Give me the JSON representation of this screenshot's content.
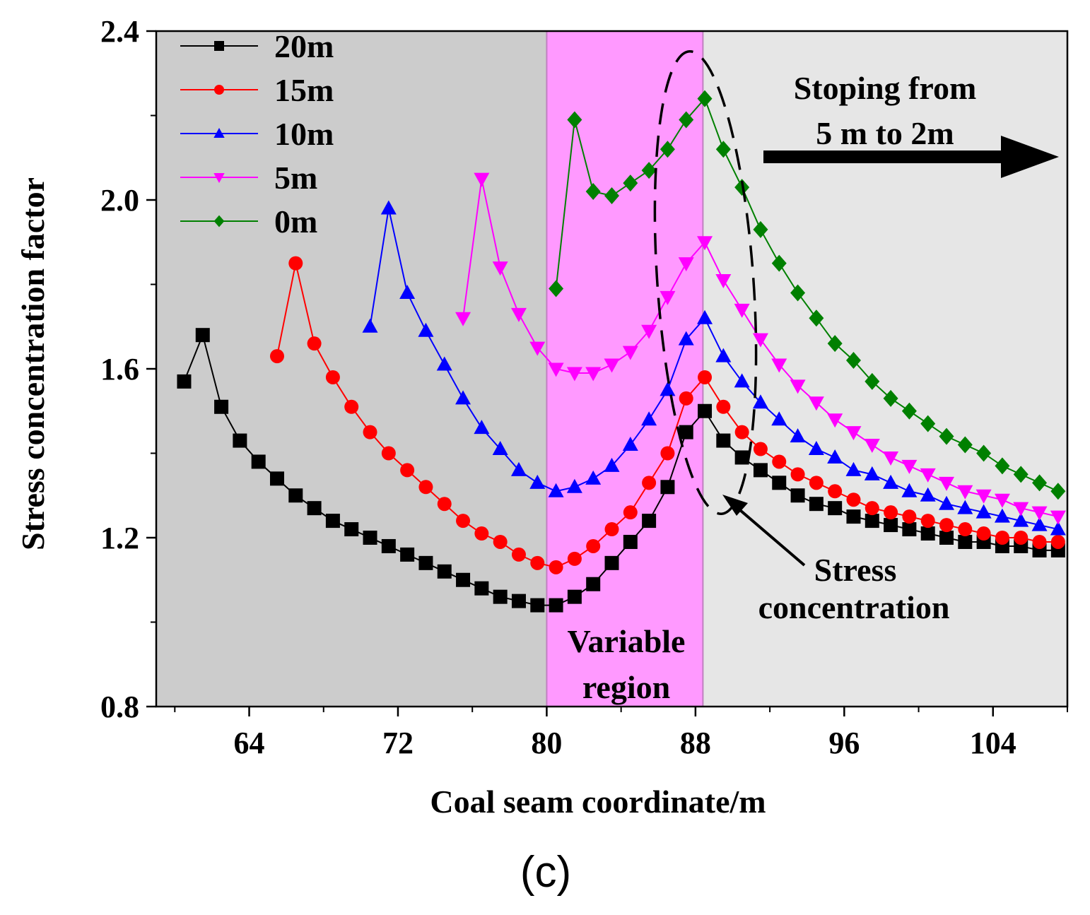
{
  "chart_data": {
    "type": "line",
    "title": "",
    "panel_label": "(c)",
    "xlabel": "Coal seam coordinate/m",
    "ylabel": "Stress concentration factor",
    "xlim": [
      59,
      108
    ],
    "ylim": [
      0.8,
      2.4
    ],
    "xticks": [
      64,
      72,
      80,
      88,
      96,
      104
    ],
    "xtick_labels": [
      "64",
      "72",
      "80",
      "88",
      "96",
      "104"
    ],
    "yticks": [
      0.8,
      1.2,
      1.6,
      2.0,
      2.4
    ],
    "ytick_labels": [
      "0.8",
      "1.2",
      "1.6",
      "2.0",
      "2.4"
    ],
    "legend_position": "top-left",
    "regions": [
      {
        "name": "left",
        "x": [
          59,
          80
        ],
        "color": "#cccccc"
      },
      {
        "name": "variable",
        "x": [
          80,
          88.4
        ],
        "color": "#ff99ff"
      },
      {
        "name": "right",
        "x": [
          88.4,
          108
        ],
        "color": "#e6e6e6"
      }
    ],
    "annotations": {
      "variable_region": [
        "Variable",
        "region"
      ],
      "stoping": [
        "Stoping from",
        "5 m to 2m"
      ],
      "stress": [
        "Stress",
        "concentration"
      ]
    },
    "series": [
      {
        "name": "20m",
        "color": "#000000",
        "marker": "square",
        "x": [
          60.5,
          61.5,
          62.5,
          63.5,
          64.5,
          65.5,
          66.5,
          67.5,
          68.5,
          69.5,
          70.5,
          71.5,
          72.5,
          73.5,
          74.5,
          75.5,
          76.5,
          77.5,
          78.5,
          79.5,
          80.5,
          81.5,
          82.5,
          83.5,
          84.5,
          85.5,
          86.5,
          87.5,
          88.5,
          89.5,
          90.5,
          91.5,
          92.5,
          93.5,
          94.5,
          95.5,
          96.5,
          97.5,
          98.5,
          99.5,
          100.5,
          101.5,
          102.5,
          103.5,
          104.5,
          105.5,
          106.5,
          107.5
        ],
        "y": [
          1.57,
          1.68,
          1.51,
          1.43,
          1.38,
          1.34,
          1.3,
          1.27,
          1.24,
          1.22,
          1.2,
          1.18,
          1.16,
          1.14,
          1.12,
          1.1,
          1.08,
          1.06,
          1.05,
          1.04,
          1.04,
          1.06,
          1.09,
          1.14,
          1.19,
          1.24,
          1.32,
          1.45,
          1.5,
          1.43,
          1.39,
          1.36,
          1.33,
          1.3,
          1.28,
          1.27,
          1.25,
          1.24,
          1.23,
          1.22,
          1.21,
          1.2,
          1.19,
          1.19,
          1.18,
          1.18,
          1.17,
          1.17
        ]
      },
      {
        "name": "15m",
        "color": "#ff0000",
        "marker": "circle",
        "x": [
          65.5,
          66.5,
          67.5,
          68.5,
          69.5,
          70.5,
          71.5,
          72.5,
          73.5,
          74.5,
          75.5,
          76.5,
          77.5,
          78.5,
          79.5,
          80.5,
          81.5,
          82.5,
          83.5,
          84.5,
          85.5,
          86.5,
          87.5,
          88.5,
          89.5,
          90.5,
          91.5,
          92.5,
          93.5,
          94.5,
          95.5,
          96.5,
          97.5,
          98.5,
          99.5,
          100.5,
          101.5,
          102.5,
          103.5,
          104.5,
          105.5,
          106.5,
          107.5
        ],
        "y": [
          1.63,
          1.85,
          1.66,
          1.58,
          1.51,
          1.45,
          1.4,
          1.36,
          1.32,
          1.28,
          1.24,
          1.21,
          1.19,
          1.16,
          1.14,
          1.13,
          1.15,
          1.18,
          1.22,
          1.26,
          1.33,
          1.4,
          1.53,
          1.58,
          1.51,
          1.45,
          1.41,
          1.38,
          1.35,
          1.33,
          1.31,
          1.29,
          1.27,
          1.26,
          1.25,
          1.24,
          1.23,
          1.22,
          1.21,
          1.2,
          1.2,
          1.19,
          1.19
        ]
      },
      {
        "name": "10m",
        "color": "#0000ff",
        "marker": "triangle-up",
        "x": [
          70.5,
          71.5,
          72.5,
          73.5,
          74.5,
          75.5,
          76.5,
          77.5,
          78.5,
          79.5,
          80.5,
          81.5,
          82.5,
          83.5,
          84.5,
          85.5,
          86.5,
          87.5,
          88.5,
          89.5,
          90.5,
          91.5,
          92.5,
          93.5,
          94.5,
          95.5,
          96.5,
          97.5,
          98.5,
          99.5,
          100.5,
          101.5,
          102.5,
          103.5,
          104.5,
          105.5,
          106.5,
          107.5
        ],
        "y": [
          1.7,
          1.98,
          1.78,
          1.69,
          1.61,
          1.53,
          1.46,
          1.41,
          1.36,
          1.33,
          1.31,
          1.32,
          1.34,
          1.37,
          1.42,
          1.48,
          1.55,
          1.67,
          1.72,
          1.63,
          1.57,
          1.52,
          1.48,
          1.44,
          1.41,
          1.39,
          1.36,
          1.35,
          1.33,
          1.31,
          1.3,
          1.28,
          1.27,
          1.26,
          1.25,
          1.24,
          1.23,
          1.22
        ]
      },
      {
        "name": "5m",
        "color": "#ff00ff",
        "marker": "triangle-down",
        "x": [
          75.5,
          76.5,
          77.5,
          78.5,
          79.5,
          80.5,
          81.5,
          82.5,
          83.5,
          84.5,
          85.5,
          86.5,
          87.5,
          88.5,
          89.5,
          90.5,
          91.5,
          92.5,
          93.5,
          94.5,
          95.5,
          96.5,
          97.5,
          98.5,
          99.5,
          100.5,
          101.5,
          102.5,
          103.5,
          104.5,
          105.5,
          106.5,
          107.5
        ],
        "y": [
          1.72,
          2.05,
          1.84,
          1.73,
          1.65,
          1.6,
          1.59,
          1.59,
          1.61,
          1.64,
          1.69,
          1.77,
          1.85,
          1.9,
          1.81,
          1.74,
          1.67,
          1.61,
          1.56,
          1.52,
          1.48,
          1.45,
          1.42,
          1.39,
          1.37,
          1.35,
          1.33,
          1.31,
          1.3,
          1.29,
          1.27,
          1.26,
          1.25
        ]
      },
      {
        "name": "0m",
        "color": "#008000",
        "marker": "diamond",
        "x": [
          80.5,
          81.5,
          82.5,
          83.5,
          84.5,
          85.5,
          86.5,
          87.5,
          88.5,
          89.5,
          90.5,
          91.5,
          92.5,
          93.5,
          94.5,
          95.5,
          96.5,
          97.5,
          98.5,
          99.5,
          100.5,
          101.5,
          102.5,
          103.5,
          104.5,
          105.5,
          106.5,
          107.5
        ],
        "y": [
          1.79,
          2.19,
          2.02,
          2.01,
          2.04,
          2.07,
          2.12,
          2.19,
          2.24,
          2.12,
          2.03,
          1.93,
          1.85,
          1.78,
          1.72,
          1.66,
          1.62,
          1.57,
          1.53,
          1.5,
          1.47,
          1.44,
          1.42,
          1.4,
          1.37,
          1.35,
          1.33,
          1.31
        ]
      }
    ]
  }
}
